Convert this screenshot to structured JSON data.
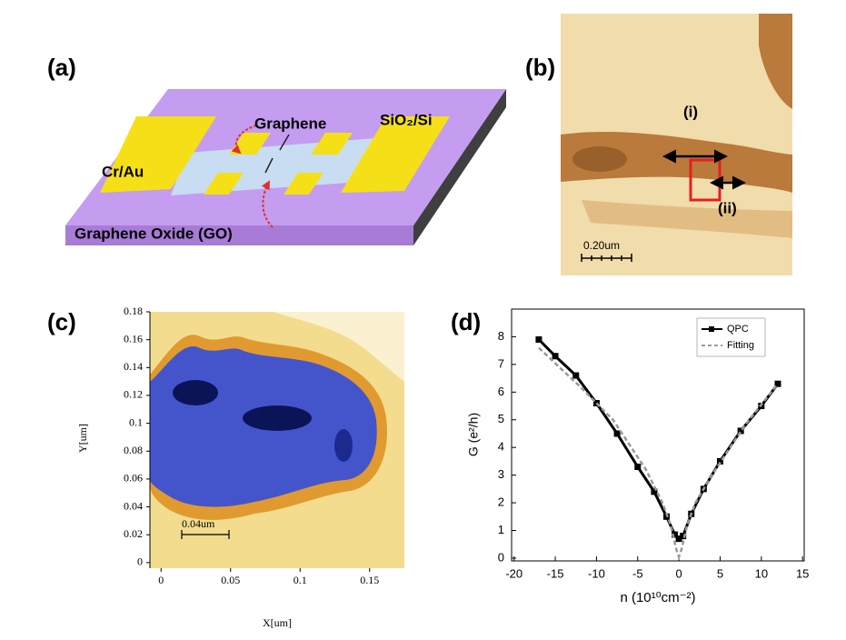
{
  "panels": {
    "a": {
      "label": "(a)",
      "graphene": "Graphene",
      "substrate": "SiO₂/Si",
      "contact": "Cr/Au",
      "oxide": "Graphene Oxide (GO)"
    },
    "b": {
      "label": "(b)",
      "arrow_i": "(i)",
      "arrow_ii": "(ii)",
      "scale_bar": "0.20um"
    },
    "c": {
      "label": "(c)",
      "xlabel": "X[um]",
      "ylabel": "Y[um]",
      "scale_bar": "0.04um",
      "xlim": [
        -0.008,
        0.175
      ],
      "ylim": [
        -0.004,
        0.18
      ],
      "xticks": [
        0,
        0.05,
        0.1,
        0.15
      ],
      "yticks": [
        0,
        0.02,
        0.04,
        0.06,
        0.08,
        0.1,
        0.12,
        0.14,
        0.16,
        0.18
      ]
    },
    "d": {
      "label": "(d)"
    }
  },
  "chart_data": {
    "type": "line",
    "xlabel": "n (10¹⁰cm⁻²)",
    "ylabel": "G (e²/h)",
    "xlim": [
      -20.3,
      15.2
    ],
    "ylim": [
      -0.1,
      9
    ],
    "xticks": [
      -20,
      -15,
      -10,
      -5,
      0,
      5,
      10,
      15
    ],
    "yticks": [
      0,
      1,
      2,
      3,
      4,
      5,
      6,
      7,
      8
    ],
    "legend": "upper right",
    "series": [
      {
        "name": "QPC",
        "color": "#000000",
        "style": "solid",
        "x": [
          -17,
          -15,
          -12.5,
          -10,
          -7.5,
          -5,
          -3,
          -1.5,
          -0.5,
          0,
          0.5,
          1.5,
          3,
          5,
          7.5,
          10,
          12
        ],
        "values": [
          7.9,
          7.3,
          6.6,
          5.6,
          4.5,
          3.3,
          2.4,
          1.5,
          0.85,
          0.7,
          0.8,
          1.6,
          2.5,
          3.5,
          4.6,
          5.5,
          6.3
        ]
      },
      {
        "name": "Fitting",
        "color": "#999999",
        "style": "dashed",
        "x": [
          -17,
          -12,
          -8,
          -4,
          -2,
          -1,
          -0.3,
          0,
          0.3,
          1,
          2,
          4,
          8,
          12
        ],
        "values": [
          7.6,
          6.2,
          5,
          3.2,
          2,
          1.2,
          0.3,
          0.05,
          0.3,
          1.2,
          2,
          3,
          4.8,
          6.3
        ]
      }
    ]
  }
}
